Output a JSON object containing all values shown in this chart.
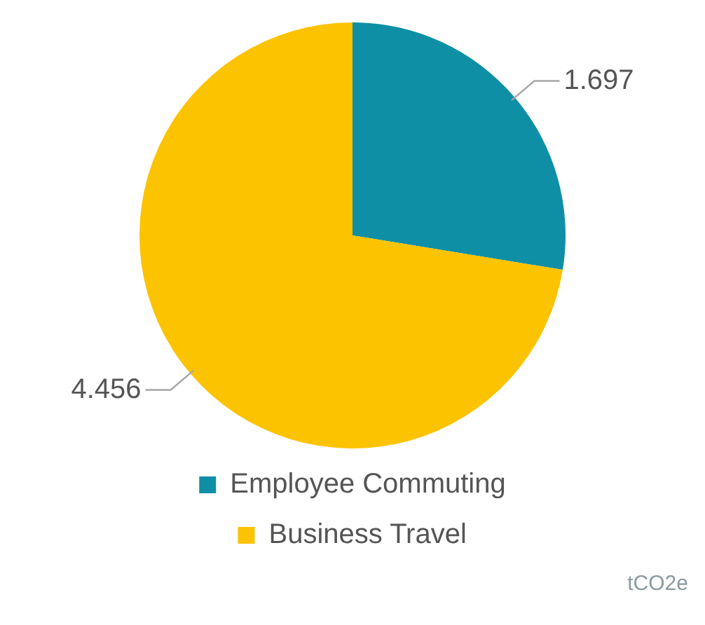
{
  "chart_data": {
    "type": "pie",
    "categories": [
      "Employee Commuting",
      "Business Travel"
    ],
    "values": [
      1.697,
      4.456
    ],
    "colors": [
      "#0e8fa6",
      "#fbc300"
    ],
    "data_labels": true,
    "legend": "bottom",
    "annotations": [
      "tCO2e"
    ]
  }
}
